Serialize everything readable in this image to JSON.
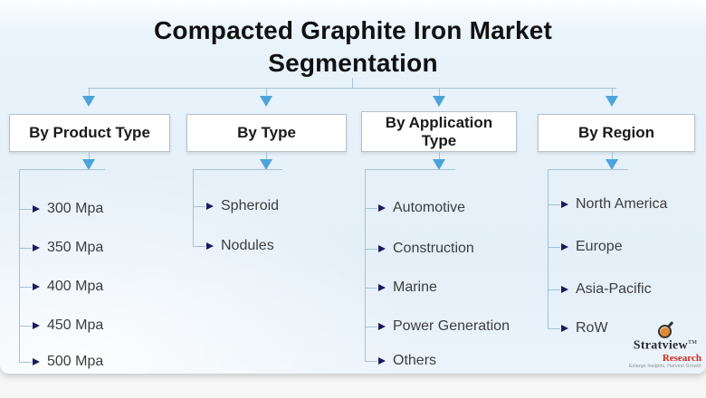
{
  "title": "Compacted Graphite Iron Market Segmentation",
  "columns": [
    {
      "header": "By Product Type",
      "items": [
        "300 Mpa",
        "350 Mpa",
        "400 Mpa",
        "450 Mpa",
        "500 Mpa"
      ]
    },
    {
      "header": "By Type",
      "items": [
        "Spheroid",
        "Nodules"
      ]
    },
    {
      "header": "By Application Type",
      "items": [
        "Automotive",
        "Construction",
        "Marine",
        "Power Generation",
        "Others"
      ]
    },
    {
      "header": "By Region",
      "items": [
        "North America",
        "Europe",
        "Asia-Pacific",
        "RoW"
      ]
    }
  ],
  "logo": {
    "brand": "Stratview",
    "trademark": "TM",
    "division": "Research",
    "tagline": "Enlarge Insights, Harvest Growth"
  },
  "colors": {
    "arrow_blue": "#4ea3da",
    "connector_line": "#a3c2d8",
    "bullet_navy": "#1a1a5e",
    "title_text": "#111111",
    "item_text": "#3d3d3d",
    "box_border": "#b5c1ca",
    "division_red": "#cf2a1b"
  }
}
